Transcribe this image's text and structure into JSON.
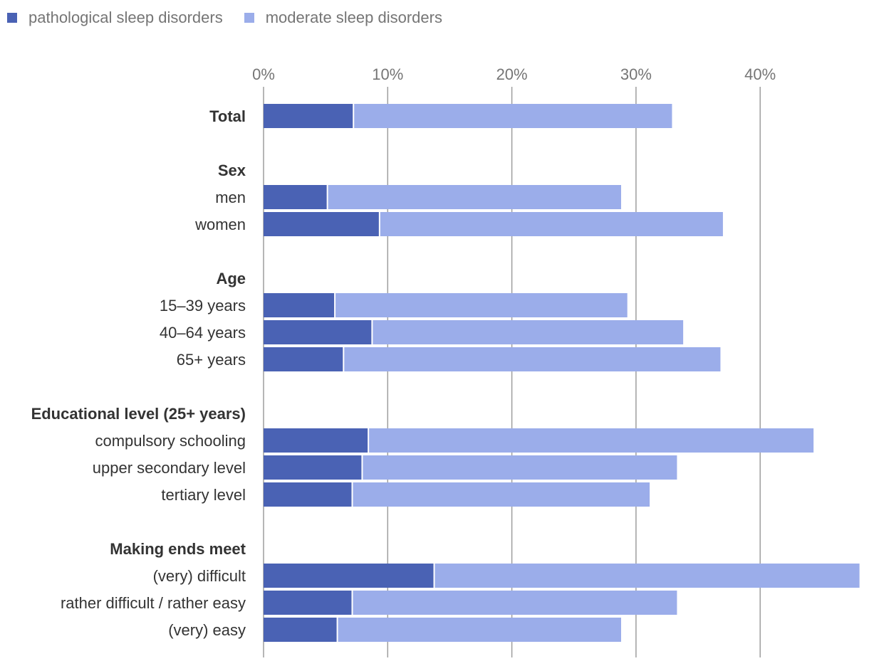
{
  "chart_data": {
    "type": "bar",
    "stacked": true,
    "orientation": "horizontal",
    "title": "",
    "xlabel": "",
    "ylabel": "",
    "xlim": [
      0,
      48
    ],
    "grid": true,
    "legend_position": "top-left",
    "ticks": [
      {
        "value": 0,
        "label": "0%"
      },
      {
        "value": 10,
        "label": "10%"
      },
      {
        "value": 20,
        "label": "20%"
      },
      {
        "value": 30,
        "label": "30%"
      },
      {
        "value": 40,
        "label": "40%"
      }
    ],
    "series": [
      {
        "name": "pathological sleep disorders",
        "color": "#4a62b4"
      },
      {
        "name": "moderate sleep disorders",
        "color": "#9badea"
      }
    ],
    "rows": [
      {
        "label": "Total",
        "header": true,
        "values": [
          7.3,
          25.6
        ]
      },
      {
        "label": "Sex",
        "header": true,
        "values": null
      },
      {
        "label": "men",
        "header": false,
        "values": [
          5.2,
          23.6
        ]
      },
      {
        "label": "women",
        "header": false,
        "values": [
          9.4,
          27.6
        ]
      },
      {
        "label": "Age",
        "header": true,
        "values": null
      },
      {
        "label": "15–39 years",
        "header": false,
        "values": [
          5.8,
          23.5
        ]
      },
      {
        "label": "40–64 years",
        "header": false,
        "values": [
          8.8,
          25.0
        ]
      },
      {
        "label": "65+ years",
        "header": false,
        "values": [
          6.5,
          30.3
        ]
      },
      {
        "label": "Educational level (25+ years)",
        "header": true,
        "values": null
      },
      {
        "label": "compulsory schooling",
        "header": false,
        "values": [
          8.5,
          35.8
        ]
      },
      {
        "label": "upper secondary level",
        "header": false,
        "values": [
          8.0,
          25.3
        ]
      },
      {
        "label": "tertiary level",
        "header": false,
        "values": [
          7.2,
          23.9
        ]
      },
      {
        "label": "Making ends meet",
        "header": true,
        "values": null
      },
      {
        "label": "(very) difficult",
        "header": false,
        "values": [
          13.8,
          34.4
        ]
      },
      {
        "label": "rather difficult / rather easy",
        "header": false,
        "values": [
          7.2,
          26.1
        ]
      },
      {
        "label": "(very) easy",
        "header": false,
        "values": [
          6.0,
          22.8
        ]
      }
    ]
  }
}
